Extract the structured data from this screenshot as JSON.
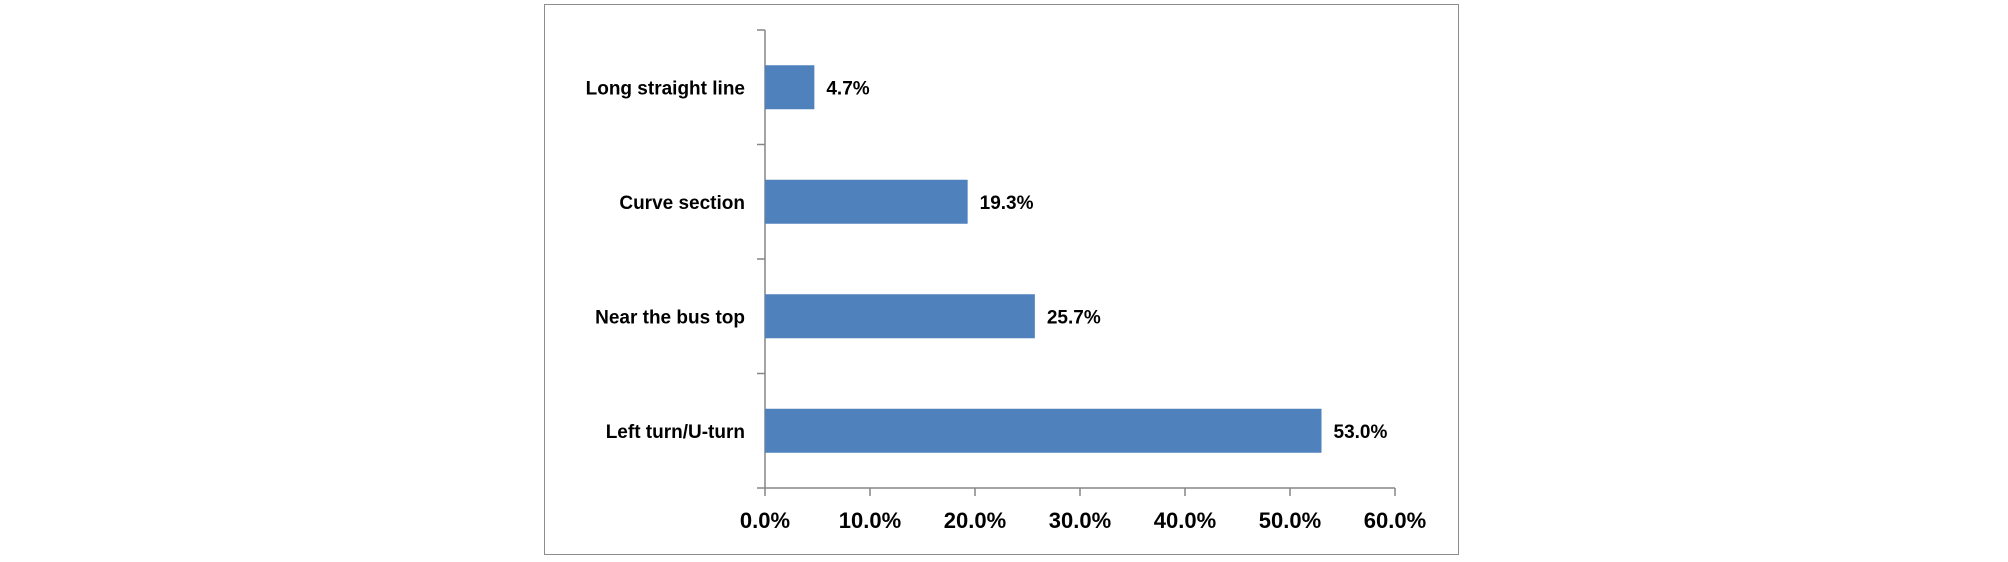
{
  "chart_data": {
    "type": "bar",
    "orientation": "horizontal",
    "categories": [
      "Long straight line",
      "Curve section",
      "Near the bus top",
      "Left turn/U-turn"
    ],
    "values": [
      4.7,
      19.3,
      25.7,
      53.0
    ],
    "value_labels": [
      "4.7%",
      "19.3%",
      "25.7%",
      "53.0%"
    ],
    "x_ticks": [
      "0.0%",
      "10.0%",
      "20.0%",
      "30.0%",
      "40.0%",
      "50.0%",
      "60.0%"
    ],
    "xlim": [
      0,
      60
    ],
    "bar_color": "#4f81bd",
    "axis_color": "#868686",
    "grid": false,
    "legend": "none"
  }
}
